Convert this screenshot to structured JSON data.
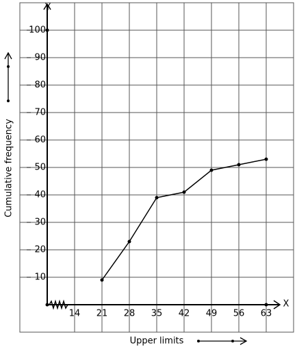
{
  "chart_data": {
    "type": "line",
    "x_axis_letter": "X",
    "y_axis_letter": "Y",
    "xlabel": "Upper limits",
    "ylabel": "Cumulative frequency",
    "x": [
      21,
      28,
      35,
      42,
      49,
      56,
      63
    ],
    "series": [
      {
        "color": "#000000",
        "values": [
          9,
          23,
          39,
          41,
          49,
          51,
          53
        ]
      }
    ],
    "xlim": [
      0,
      70
    ],
    "ylim": [
      -10,
      110
    ],
    "xticks": [
      14,
      21,
      28,
      35,
      42,
      49,
      56,
      63
    ],
    "yticks": [
      10,
      20,
      30,
      40,
      50,
      60,
      70,
      80,
      90,
      100
    ],
    "grid": true
  }
}
